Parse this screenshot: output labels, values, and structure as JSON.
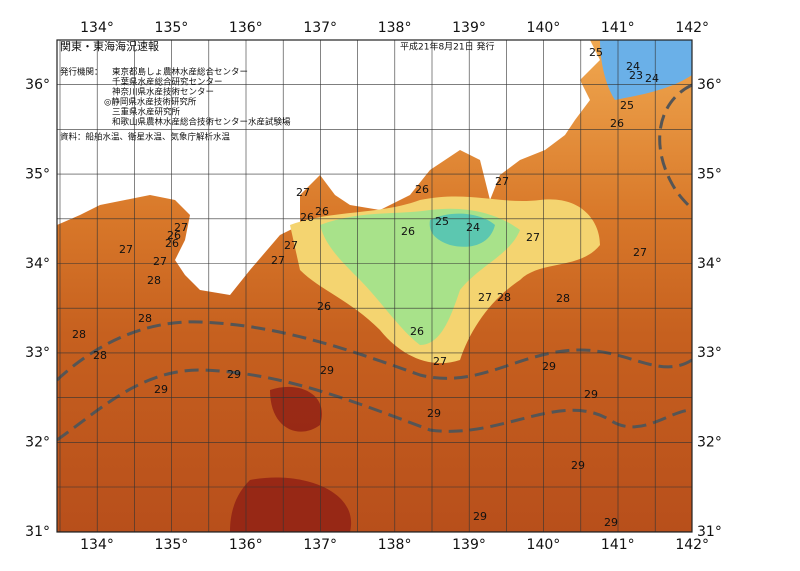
{
  "header": {
    "title": "関東・東海海況速報",
    "date": "平成21年8月21日 発行"
  },
  "issuers": {
    "label": "発行機関：",
    "names": [
      "東京都島しょ農林水産総合センター",
      "千葉県水産総合研究センター",
      "神奈川県水産技術センター",
      "◎静岡県水産技術研究所",
      "三重県水産研究所",
      "和歌山県農林水産総合技術センター水産試験場"
    ]
  },
  "source": "資料：船舶水温、衛星水温、気象庁解析水温",
  "longitude_labels": [
    "134°",
    "135°",
    "136°",
    "137°",
    "138°",
    "139°",
    "140°",
    "141°",
    "142°"
  ],
  "latitude_labels": [
    "36°",
    "35°",
    "34°",
    "33°",
    "32°",
    "31°"
  ],
  "contour_labels": [
    "25",
    "24",
    "23",
    "24",
    "25",
    "26",
    "27",
    "26",
    "27",
    "26",
    "26",
    "25",
    "24",
    "26",
    "27",
    "27",
    "26",
    "26",
    "27",
    "27",
    "27",
    "27",
    "27",
    "28",
    "27",
    "28",
    "28",
    "26",
    "28",
    "28",
    "26",
    "28",
    "27",
    "29",
    "29",
    "29",
    "29",
    "29",
    "29",
    "29",
    "29",
    "29"
  ]
}
